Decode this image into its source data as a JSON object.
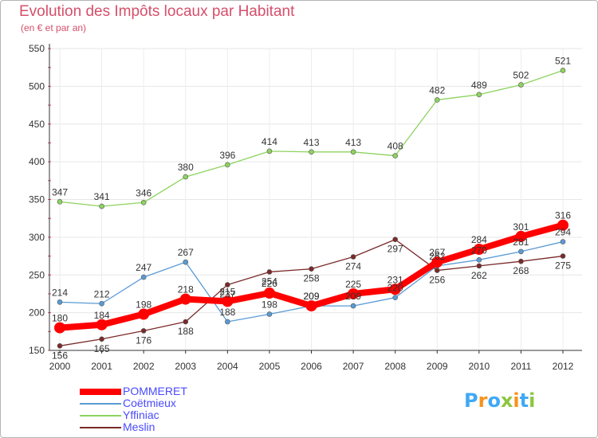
{
  "chart_data": {
    "type": "line",
    "title": "Evolution des Impôts locaux par Habitant",
    "subtitle": "(en € et par an)",
    "xlabel": "",
    "ylabel": "",
    "x": [
      "2000",
      "2001",
      "2002",
      "2003",
      "2004",
      "2005",
      "2006",
      "2007",
      "2008",
      "2009",
      "2010",
      "2011",
      "2012"
    ],
    "ylim": [
      150,
      550
    ],
    "yticks": [
      "150",
      "200",
      "250",
      "300",
      "350",
      "400",
      "450",
      "500",
      "550"
    ],
    "grid": true,
    "series": [
      {
        "name": "POMMERET",
        "color": "#ff0000",
        "values": [
          180,
          184,
          198,
          218,
          215,
          226,
          209,
          225,
          231,
          267,
          284,
          301,
          316
        ],
        "labels": [
          "180",
          "184",
          "198",
          "218",
          "215",
          "226",
          "209",
          "225",
          "231",
          "267",
          "284",
          "301",
          "316"
        ]
      },
      {
        "name": "Coëtmieux",
        "color": "#5b9bd5",
        "values": [
          214,
          212,
          247,
          267,
          188,
          198,
          209,
          209,
          220,
          262,
          270,
          281,
          294
        ],
        "labels": [
          "214",
          "212",
          "247",
          "267",
          "188",
          "198",
          "209",
          "209",
          "220",
          "262",
          "270",
          "281",
          "294"
        ]
      },
      {
        "name": "Yffiniac",
        "color": "#8dd35f",
        "values": [
          347,
          341,
          346,
          380,
          396,
          414,
          413,
          413,
          408,
          482,
          489,
          502,
          521
        ],
        "labels": [
          "347",
          "341",
          "346",
          "380",
          "396",
          "414",
          "413",
          "413",
          "408",
          "482",
          "489",
          "502",
          "521"
        ]
      },
      {
        "name": "Meslin",
        "color": "#7b2a2a",
        "values": [
          156,
          165,
          176,
          188,
          237,
          254,
          258,
          274,
          297,
          256,
          262,
          268,
          275
        ],
        "labels": [
          "156",
          "165",
          "176",
          "188",
          "237",
          "254",
          "258",
          "274",
          "297",
          "256",
          "262",
          "268",
          "275"
        ]
      }
    ]
  },
  "logo": {
    "text": "Proxiti",
    "letters": [
      "P",
      "r",
      "o",
      "x",
      "i",
      "t",
      "i"
    ],
    "colors": [
      "#3fa9f5",
      "#f7931e",
      "#3fa9f5",
      "#8cc63f",
      "#f7931e",
      "#3fa9f5",
      "#8cc63f"
    ]
  }
}
